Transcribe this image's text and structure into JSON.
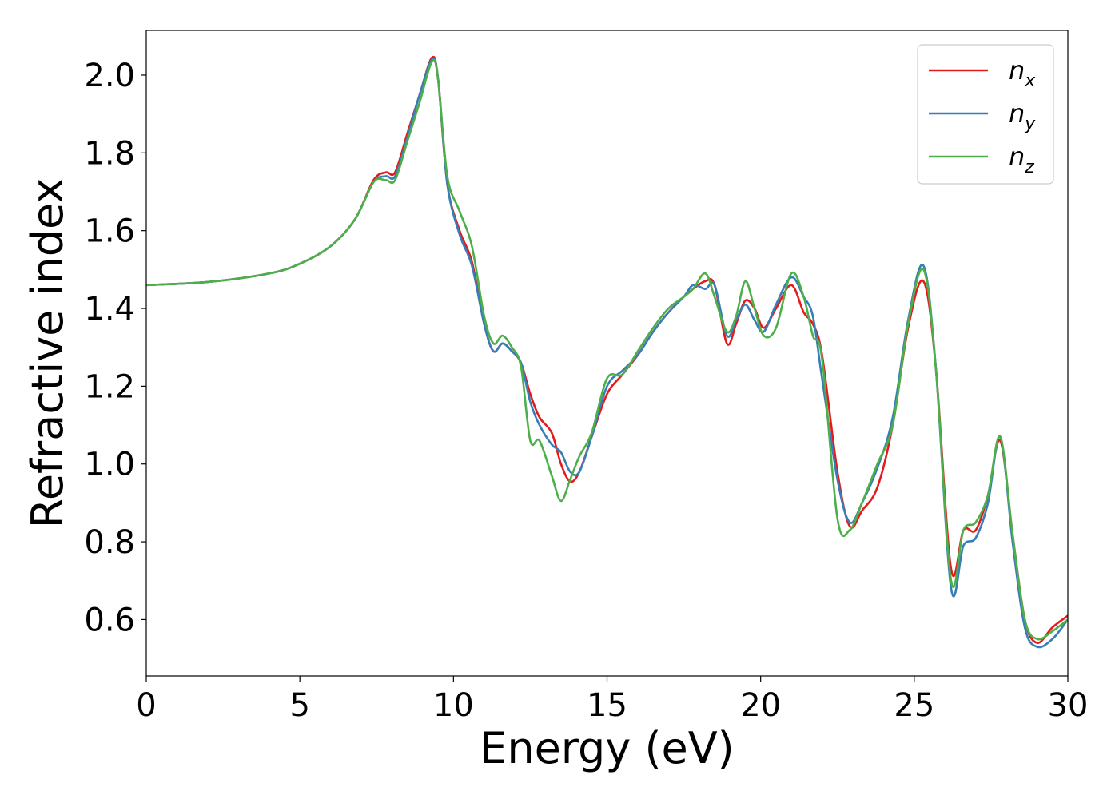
{
  "chart_data": {
    "type": "line",
    "title": "",
    "xlabel": "Energy (eV)",
    "ylabel": "Refractive index",
    "xlim": [
      0,
      30
    ],
    "ylim": [
      0.455,
      2.115
    ],
    "xticks": [
      0,
      5,
      10,
      15,
      20,
      25,
      30
    ],
    "xtick_labels": [
      "0",
      "5",
      "10",
      "15",
      "20",
      "25",
      "30"
    ],
    "yticks": [
      0.6,
      0.8,
      1.0,
      1.2,
      1.4,
      1.6,
      1.8,
      2.0
    ],
    "ytick_labels": [
      "0.6",
      "0.8",
      "1.0",
      "1.2",
      "1.4",
      "1.6",
      "1.8",
      "2.0"
    ],
    "grid": false,
    "legend_position": "top-right",
    "series": [
      {
        "name": "n_x",
        "label_base": "n",
        "label_sub": "x",
        "color": "#e41a1c",
        "x": [
          0,
          2,
          4,
          5,
          6,
          6.8,
          7.4,
          7.8,
          8.1,
          8.5,
          8.9,
          9.3,
          9.5,
          9.8,
          10.2,
          10.6,
          11,
          11.3,
          11.6,
          11.9,
          12.2,
          12.5,
          12.8,
          13.2,
          13.5,
          13.8,
          14.1,
          14.5,
          15,
          15.5,
          16,
          16.5,
          17,
          17.5,
          17.8,
          18.2,
          18.5,
          18.9,
          19.2,
          19.5,
          19.8,
          20.1,
          20.5,
          21,
          21.4,
          21.7,
          22,
          22.5,
          22.9,
          23.3,
          23.8,
          24.3,
          24.8,
          25.3,
          25.7,
          26.2,
          26.6,
          27,
          27.4,
          27.8,
          28.2,
          28.6,
          29,
          29.5,
          30
        ],
        "values": [
          1.46,
          1.468,
          1.49,
          1.515,
          1.56,
          1.63,
          1.73,
          1.75,
          1.75,
          1.85,
          1.95,
          2.045,
          1.99,
          1.72,
          1.6,
          1.52,
          1.36,
          1.29,
          1.31,
          1.29,
          1.26,
          1.18,
          1.12,
          1.08,
          1.0,
          0.955,
          0.98,
          1.07,
          1.18,
          1.23,
          1.28,
          1.34,
          1.39,
          1.43,
          1.45,
          1.47,
          1.46,
          1.31,
          1.36,
          1.42,
          1.4,
          1.35,
          1.4,
          1.46,
          1.39,
          1.36,
          1.28,
          0.98,
          0.84,
          0.88,
          0.94,
          1.1,
          1.35,
          1.47,
          1.25,
          0.73,
          0.83,
          0.83,
          0.92,
          1.06,
          0.82,
          0.6,
          0.54,
          0.58,
          0.61
        ]
      },
      {
        "name": "n_y",
        "label_base": "n",
        "label_sub": "y",
        "color": "#377eb8",
        "x": [
          0,
          2,
          4,
          5,
          6,
          6.8,
          7.4,
          7.8,
          8.1,
          8.5,
          8.9,
          9.3,
          9.5,
          9.8,
          10.2,
          10.6,
          11,
          11.3,
          11.6,
          11.9,
          12.2,
          12.5,
          12.8,
          13.2,
          13.5,
          13.8,
          14.1,
          14.5,
          15,
          15.5,
          16,
          16.5,
          17,
          17.5,
          17.8,
          18.2,
          18.5,
          18.9,
          19.2,
          19.5,
          19.8,
          20.1,
          20.5,
          21,
          21.4,
          21.7,
          22,
          22.5,
          22.9,
          23.3,
          23.8,
          24.3,
          24.8,
          25.3,
          25.7,
          26.2,
          26.6,
          27,
          27.4,
          27.8,
          28.2,
          28.6,
          29,
          29.5,
          30
        ],
        "values": [
          1.46,
          1.468,
          1.49,
          1.515,
          1.56,
          1.63,
          1.725,
          1.74,
          1.74,
          1.84,
          1.95,
          2.04,
          1.99,
          1.72,
          1.59,
          1.51,
          1.36,
          1.29,
          1.31,
          1.29,
          1.26,
          1.16,
          1.1,
          1.05,
          1.03,
          0.98,
          0.98,
          1.07,
          1.2,
          1.24,
          1.28,
          1.34,
          1.39,
          1.43,
          1.46,
          1.45,
          1.46,
          1.33,
          1.37,
          1.41,
          1.37,
          1.34,
          1.41,
          1.48,
          1.43,
          1.38,
          1.22,
          0.96,
          0.85,
          0.9,
          0.99,
          1.12,
          1.37,
          1.51,
          1.25,
          0.68,
          0.79,
          0.81,
          0.9,
          1.07,
          0.8,
          0.58,
          0.53,
          0.55,
          0.6
        ]
      },
      {
        "name": "n_z",
        "label_base": "n",
        "label_sub": "z",
        "color": "#4daf4a",
        "x": [
          0,
          2,
          4,
          5,
          6,
          6.8,
          7.4,
          7.8,
          8.1,
          8.5,
          8.9,
          9.3,
          9.5,
          9.8,
          10.2,
          10.6,
          11,
          11.3,
          11.6,
          11.9,
          12.2,
          12.5,
          12.8,
          13.2,
          13.5,
          13.8,
          14.1,
          14.5,
          15,
          15.5,
          16,
          16.5,
          17,
          17.5,
          17.8,
          18.2,
          18.5,
          18.9,
          19.2,
          19.5,
          19.8,
          20.1,
          20.5,
          21,
          21.4,
          21.7,
          22,
          22.5,
          22.9,
          23.3,
          23.8,
          24.3,
          24.8,
          25.3,
          25.7,
          26.2,
          26.6,
          27,
          27.4,
          27.8,
          28.2,
          28.6,
          29,
          29.5,
          30
        ],
        "values": [
          1.46,
          1.468,
          1.49,
          1.515,
          1.56,
          1.63,
          1.725,
          1.73,
          1.73,
          1.83,
          1.93,
          2.035,
          1.99,
          1.74,
          1.65,
          1.56,
          1.38,
          1.31,
          1.33,
          1.3,
          1.25,
          1.06,
          1.06,
          0.97,
          0.905,
          0.96,
          1.02,
          1.08,
          1.22,
          1.23,
          1.29,
          1.35,
          1.4,
          1.43,
          1.45,
          1.49,
          1.43,
          1.34,
          1.38,
          1.47,
          1.4,
          1.33,
          1.35,
          1.49,
          1.43,
          1.33,
          1.27,
          0.86,
          0.83,
          0.9,
          1.0,
          1.1,
          1.36,
          1.5,
          1.25,
          0.7,
          0.83,
          0.85,
          0.92,
          1.07,
          0.82,
          0.6,
          0.55,
          0.57,
          0.6
        ]
      }
    ]
  }
}
